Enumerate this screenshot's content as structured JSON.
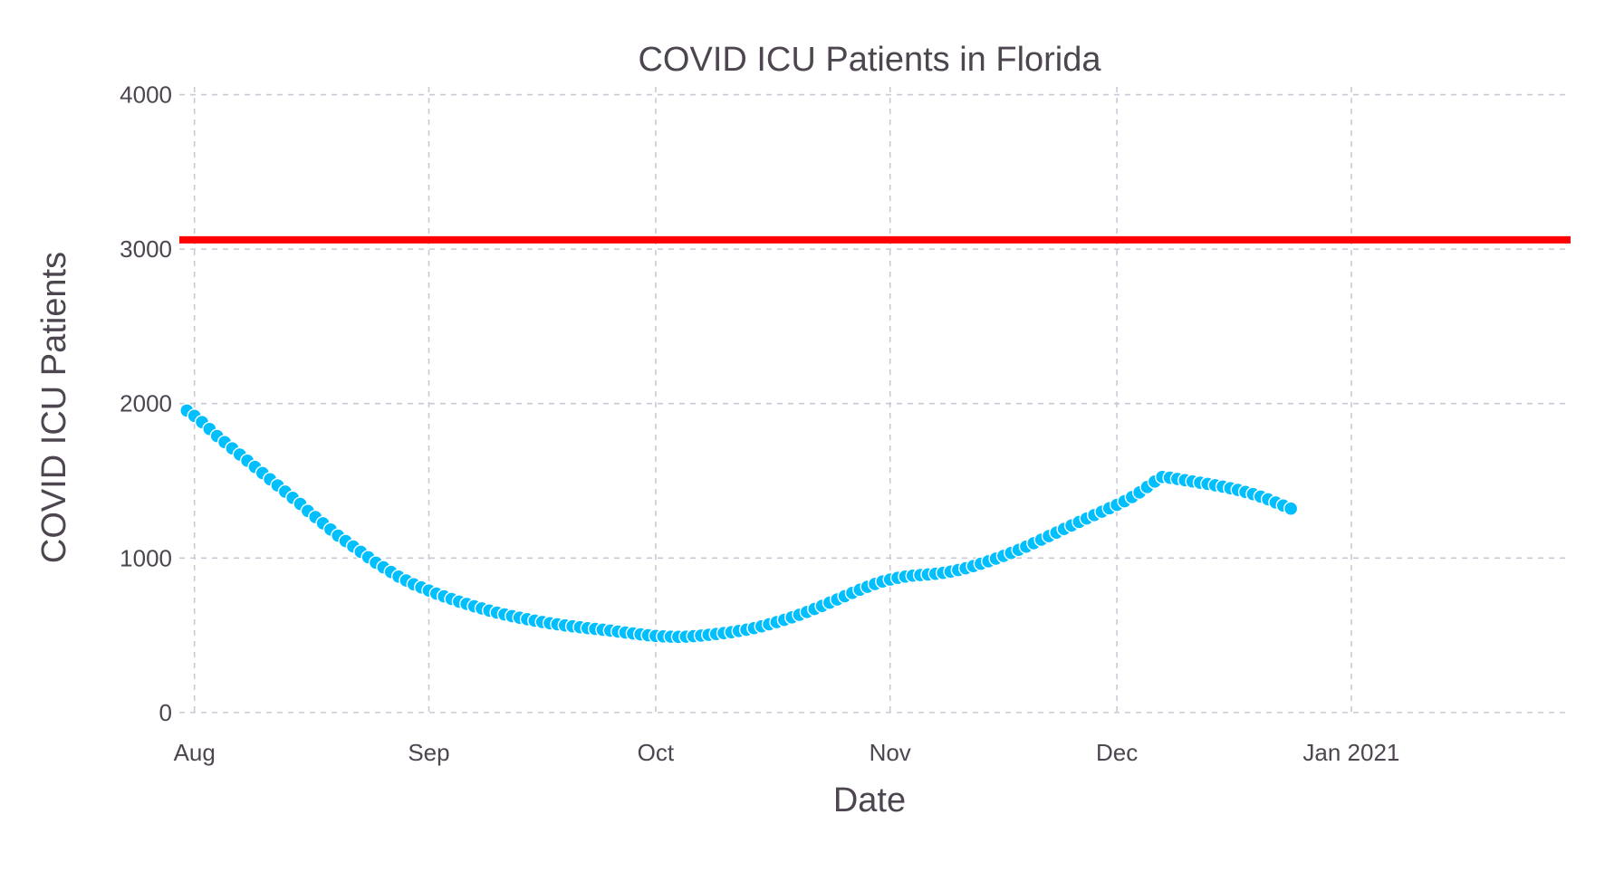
{
  "chart_data": {
    "type": "scatter",
    "title": "COVID ICU Patients in Florida",
    "xlabel": "Date",
    "ylabel": "COVID ICU Patients",
    "x_type": "date",
    "xlim": [
      "2020-07-30",
      "2021-01-30"
    ],
    "ylim": [
      -30,
      4050
    ],
    "grid": true,
    "x_ticks": [
      {
        "value": "2020-08-01",
        "label": "Aug"
      },
      {
        "value": "2020-09-01",
        "label": "Sep"
      },
      {
        "value": "2020-10-01",
        "label": "Oct"
      },
      {
        "value": "2020-11-01",
        "label": "Nov"
      },
      {
        "value": "2020-12-01",
        "label": "Dec"
      },
      {
        "value": "2021-01-01",
        "label": "Jan 2021"
      }
    ],
    "y_ticks": [
      {
        "value": 0,
        "label": "0"
      },
      {
        "value": 1000,
        "label": "1000"
      },
      {
        "value": 2000,
        "label": "2000"
      },
      {
        "value": 3000,
        "label": "3000"
      },
      {
        "value": 4000,
        "label": "4000"
      }
    ],
    "reference_line": {
      "y": 3060,
      "color": "#ff0000"
    },
    "point_color": "#00bfff",
    "series": [
      {
        "x_start": "2020-07-31",
        "x_step_days": 1,
        "values": [
          1955,
          1920,
          1880,
          1835,
          1790,
          1750,
          1710,
          1670,
          1630,
          1590,
          1550,
          1510,
          1470,
          1430,
          1390,
          1350,
          1305,
          1265,
          1225,
          1185,
          1145,
          1110,
          1075,
          1040,
          1005,
          970,
          940,
          910,
          880,
          855,
          830,
          810,
          790,
          770,
          752,
          735,
          718,
          703,
          688,
          674,
          660,
          647,
          635,
          624,
          614,
          604,
          595,
          586,
          578,
          571,
          564,
          558,
          552,
          546,
          541,
          536,
          530,
          524,
          518,
          512,
          506,
          500,
          496,
          493,
          491,
          490,
          491,
          494,
          498,
          503,
          508,
          514,
          520,
          528,
          536,
          546,
          558,
          571,
          585,
          600,
          616,
          633,
          651,
          670,
          690,
          711,
          732,
          753,
          774,
          795,
          814,
          832,
          848,
          861,
          872,
          880,
          886,
          890,
          894,
          898,
          904,
          912,
          922,
          934,
          948,
          963,
          979,
          996,
          1014,
          1033,
          1053,
          1074,
          1096,
          1119,
          1142,
          1165,
          1188,
          1211,
          1234,
          1256,
          1278,
          1300,
          1322,
          1344,
          1368,
          1395,
          1425,
          1460,
          1495,
          1525,
          1520,
          1512,
          1504,
          1496,
          1488,
          1480,
          1471,
          1462,
          1452,
          1441,
          1428,
          1414,
          1398,
          1380,
          1360,
          1340,
          1320
        ]
      }
    ]
  }
}
